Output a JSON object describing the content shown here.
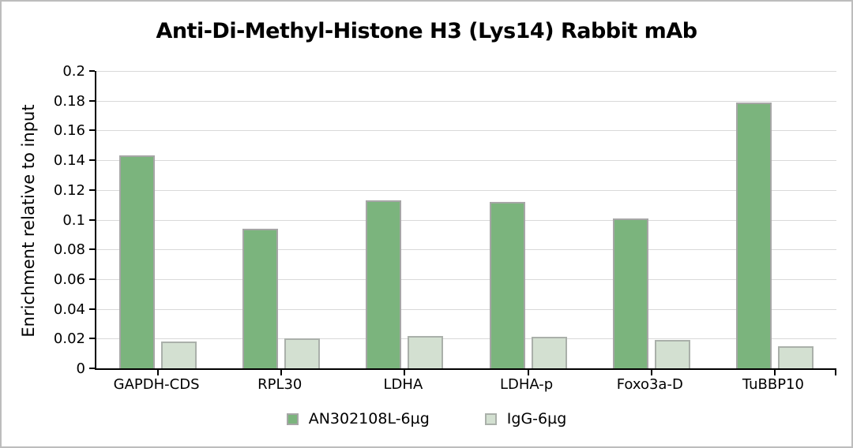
{
  "window": {
    "background": "#ffffff",
    "frame_border_color": "#bdbdbd"
  },
  "chart_data": {
    "type": "bar",
    "title": "Anti-Di-Methyl-Histone H3 (Lys14) Rabbit mAb",
    "ylabel": "Enrichment relative to input",
    "xlabel": "",
    "categories": [
      "GAPDH-CDS",
      "RPL30",
      "LDHA",
      "LDHA-p",
      "Foxo3a-D",
      "TuBBP10"
    ],
    "series": [
      {
        "name": "AN302108L-6µg",
        "fill_color": "#7bb47d",
        "border_color": "#a6a6a6",
        "values": [
          0.143,
          0.094,
          0.113,
          0.112,
          0.101,
          0.179
        ]
      },
      {
        "name": "IgG-6µg",
        "fill_color": "#d3e0d1",
        "border_color": "#aab0aa",
        "values": [
          0.018,
          0.02,
          0.022,
          0.021,
          0.019,
          0.015
        ]
      }
    ],
    "ylim": [
      0,
      0.2
    ],
    "ytick_step": 0.02,
    "ytick_labels": [
      "0",
      "0.02",
      "0.04",
      "0.06",
      "0.08",
      "0.1",
      "0.12",
      "0.14",
      "0.16",
      "0.18",
      "0.2"
    ],
    "grid": true,
    "gridline_color": "#d9d9d9",
    "axis_color": "#000000",
    "legend_position": "bottom"
  }
}
